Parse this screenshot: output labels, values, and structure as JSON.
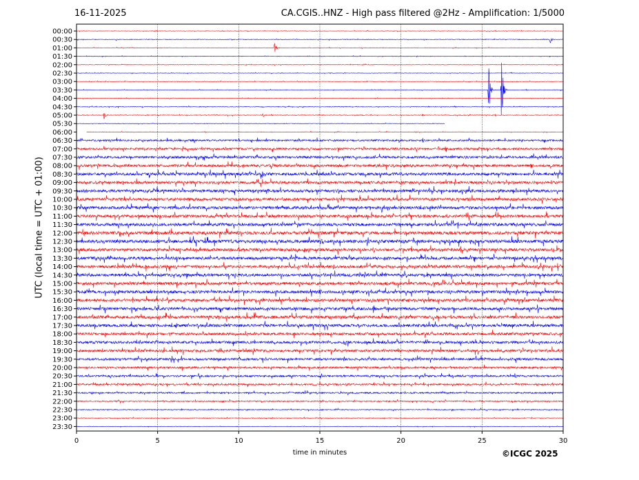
{
  "date": "16-11-2025",
  "title": "CA.CGIS..HNZ - High pass filtered @2Hz - Amplification: 1/5000",
  "copyright": "©ICGC 2025",
  "chart_data": {
    "type": "line",
    "title": "CA.CGIS..HNZ - High pass filtered @2Hz - Amplification: 1/5000",
    "xlabel": "time in minutes",
    "ylabel": "UTC (local time = UTC + 01:00)",
    "xlim": [
      0,
      30
    ],
    "xticks": [
      0,
      5,
      10,
      15,
      20,
      25,
      30
    ],
    "vertical_grid": [
      5,
      10,
      15,
      20,
      25
    ],
    "trace_colors": [
      "#ff0000",
      "#0000ff"
    ],
    "rows": [
      "00:00",
      "00:30",
      "01:00",
      "01:30",
      "02:00",
      "02:30",
      "03:00",
      "03:30",
      "04:00",
      "04:30",
      "05:00",
      "05:30",
      "06:00",
      "06:30",
      "07:00",
      "07:30",
      "08:00",
      "08:30",
      "09:00",
      "09:30",
      "10:00",
      "10:30",
      "11:00",
      "11:30",
      "12:00",
      "12:30",
      "13:00",
      "13:30",
      "14:00",
      "14:30",
      "15:00",
      "15:30",
      "16:00",
      "16:30",
      "17:00",
      "17:30",
      "18:00",
      "18:30",
      "19:00",
      "19:30",
      "20:00",
      "20:30",
      "21:00",
      "21:30",
      "22:00",
      "22:30",
      "23:00",
      "23:30"
    ],
    "row_noise": [
      0.3,
      0.4,
      0.3,
      0.3,
      0.3,
      0.3,
      0.3,
      0.3,
      0.3,
      0.4,
      0.4,
      0.3,
      0.3,
      1.2,
      1.4,
      1.6,
      1.8,
      2.0,
      1.9,
      2.0,
      2.0,
      2.0,
      2.0,
      2.0,
      2.2,
      2.2,
      2.1,
      2.0,
      2.0,
      2.0,
      2.0,
      2.0,
      2.0,
      2.0,
      2.0,
      2.0,
      1.8,
      1.8,
      1.8,
      1.6,
      1.4,
      1.3,
      1.2,
      1.0,
      0.8,
      0.6,
      0.4,
      0.3
    ],
    "trace_gaps": [
      {
        "row": 11,
        "from": 22.7,
        "to": 30
      },
      {
        "row": 12,
        "from": 0,
        "to": 0.6
      }
    ],
    "events": [
      {
        "row": 1,
        "t": 29.2,
        "amp": 8
      },
      {
        "row": 2,
        "t": 12.2,
        "amp": 9
      },
      {
        "row": 10,
        "t": 1.7,
        "amp": 6
      },
      {
        "row": 10,
        "t": 11.5,
        "amp": 4
      },
      {
        "row": 10,
        "t": 21.3,
        "amp": 4
      },
      {
        "row": 7,
        "t": 25.4,
        "amp": 60
      },
      {
        "row": 7,
        "t": 26.2,
        "amp": 60
      },
      {
        "row": 16,
        "t": 1.3,
        "amp": 5
      },
      {
        "row": 16,
        "t": 28.0,
        "amp": 5
      },
      {
        "row": 17,
        "t": 15.0,
        "amp": 4
      },
      {
        "row": 19,
        "t": 11.8,
        "amp": 5
      },
      {
        "row": 21,
        "t": 15.0,
        "amp": 5
      },
      {
        "row": 25,
        "t": 15.0,
        "amp": 5
      },
      {
        "row": 26,
        "t": 17.8,
        "amp": 5
      },
      {
        "row": 27,
        "t": 13.5,
        "amp": 5
      },
      {
        "row": 28,
        "t": 28.4,
        "amp": 6
      },
      {
        "row": 29,
        "t": 17.8,
        "amp": 6
      },
      {
        "row": 31,
        "t": 15.0,
        "amp": 5
      },
      {
        "row": 33,
        "t": 18.3,
        "amp": 6
      },
      {
        "row": 35,
        "t": 19.9,
        "amp": 6
      },
      {
        "row": 35,
        "t": 1.4,
        "amp": 4
      },
      {
        "row": 37,
        "t": 16.5,
        "amp": 6
      },
      {
        "row": 37,
        "t": 4.9,
        "amp": 4
      },
      {
        "row": 39,
        "t": 16.5,
        "amp": 5
      },
      {
        "row": 40,
        "t": 29.9,
        "amp": 4
      },
      {
        "row": 42,
        "t": 9.9,
        "amp": 4
      }
    ]
  }
}
